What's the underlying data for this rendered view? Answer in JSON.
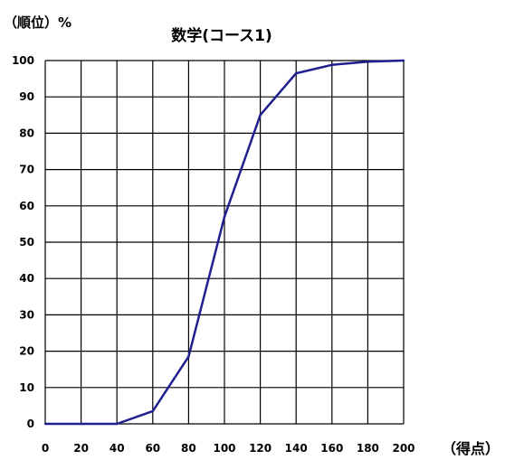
{
  "chart_data": {
    "type": "line",
    "title": "数学(コース1)",
    "ylabel": "（順位）%",
    "xlabel": "（得点）",
    "x": [
      0,
      20,
      40,
      60,
      80,
      100,
      120,
      140,
      160,
      180,
      200
    ],
    "series": [
      {
        "values": [
          0,
          0,
          0,
          3.5,
          18.5,
          57,
          85,
          96.5,
          98.8,
          99.7,
          100
        ]
      }
    ],
    "xlim": [
      0,
      200
    ],
    "ylim": [
      0,
      100
    ],
    "xticks": [
      "0",
      "20",
      "40",
      "60",
      "80",
      "100",
      "120",
      "140",
      "160",
      "180",
      "200"
    ],
    "yticks": [
      "0",
      "10",
      "20",
      "30",
      "40",
      "50",
      "60",
      "70",
      "80",
      "90",
      "100"
    ],
    "grid": true,
    "line_color": "#1f1f8f"
  }
}
